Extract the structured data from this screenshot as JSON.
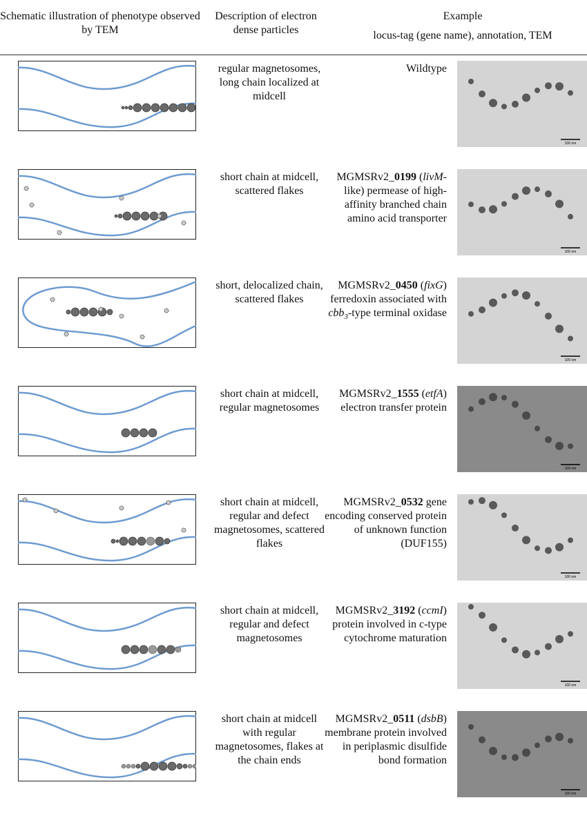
{
  "header": {
    "col1": "Schematic illustration of phenotype observed by TEM",
    "col2": "Description of electron dense particles",
    "col3": "Example",
    "col3_sub": "locus-tag (gene name), annotation, TEM"
  },
  "rows": [
    {
      "description": "regular magnetosomes, long chain localized at midcell",
      "example": [
        {
          "text": "Wildtype"
        }
      ],
      "scale_label": "100 nm"
    },
    {
      "description": "short chain at midcell, scattered flakes",
      "example": [
        {
          "text": "MGMSRv2_"
        },
        {
          "text": "0199",
          "style": "bold"
        },
        {
          "text": " ("
        },
        {
          "text": "livM",
          "style": "italic"
        },
        {
          "text": "-like) permease of high-affinity branched chain amino acid transporter"
        }
      ],
      "scale_label": "100 nm"
    },
    {
      "description": "short, delocalized chain, scattered flakes",
      "example": [
        {
          "text": "MGMSRv2_"
        },
        {
          "text": "0450",
          "style": "bold"
        },
        {
          "text": " ("
        },
        {
          "text": "fixG",
          "style": "italic"
        },
        {
          "text": ") ferredoxin associated with "
        },
        {
          "text": "cbb",
          "style": "italic"
        },
        {
          "text": "3",
          "style": "sub"
        },
        {
          "text": "-type terminal oxidase"
        }
      ],
      "scale_label": "100 nm"
    },
    {
      "description": "short chain at midcell, regular magnetosomes",
      "example": [
        {
          "text": "MGMSRv2_"
        },
        {
          "text": "1555",
          "style": "bold"
        },
        {
          "text": " ("
        },
        {
          "text": "etfA",
          "style": "italic"
        },
        {
          "text": ") electron transfer protein"
        }
      ],
      "scale_label": "100 nm"
    },
    {
      "description": "short chain at midcell, regular and defect magnetosomes, scattered flakes",
      "example": [
        {
          "text": "MGMSRv2_"
        },
        {
          "text": "0532",
          "style": "bold"
        },
        {
          "text": " gene encoding conserved protein of unknown function (DUF155)"
        }
      ],
      "scale_label": "100 nm"
    },
    {
      "description": "short chain at midcell, regular and defect magnetosomes",
      "example": [
        {
          "text": "MGMSRv2_"
        },
        {
          "text": "3192",
          "style": "bold"
        },
        {
          "text": " ("
        },
        {
          "text": "ccmI",
          "style": "italic"
        },
        {
          "text": ") protein involved in c-type cytochrome maturation"
        }
      ],
      "scale_label": "100 nm"
    },
    {
      "description": "short chain at midcell with regular magnetosomes, flakes at the chain ends",
      "example": [
        {
          "text": "MGMSRv2_"
        },
        {
          "text": "0511",
          "style": "bold"
        },
        {
          "text": " ("
        },
        {
          "text": "dsbB",
          "style": "italic"
        },
        {
          "text": ") membrane protein involved in periplasmic disulfide bond formation"
        }
      ],
      "scale_label": "100 nm"
    }
  ]
}
